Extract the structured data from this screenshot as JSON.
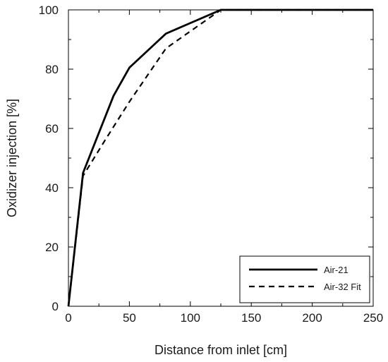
{
  "chart_data": {
    "type": "line",
    "title": "",
    "xlabel": "Distance from inlet [cm]",
    "ylabel": "Oxidizer injection [%]",
    "xlim": [
      0,
      250
    ],
    "ylim": [
      0,
      100
    ],
    "xticks": [
      0,
      50,
      100,
      150,
      200,
      250
    ],
    "yticks": [
      0,
      20,
      40,
      60,
      80,
      100
    ],
    "grid": false,
    "legend_position": "bottom-right",
    "series": [
      {
        "name": "Air-21",
        "style": "solid",
        "color": "#000000",
        "x": [
          0,
          12,
          37,
          50,
          80,
          125,
          250
        ],
        "y": [
          0,
          45,
          71,
          80.5,
          92,
          100,
          100
        ]
      },
      {
        "name": "Air-32 Fit",
        "style": "dashed",
        "color": "#000000",
        "x": [
          0,
          12,
          30,
          50,
          80,
          125,
          250
        ],
        "y": [
          0,
          44,
          56,
          69,
          87,
          100,
          100
        ]
      }
    ]
  }
}
